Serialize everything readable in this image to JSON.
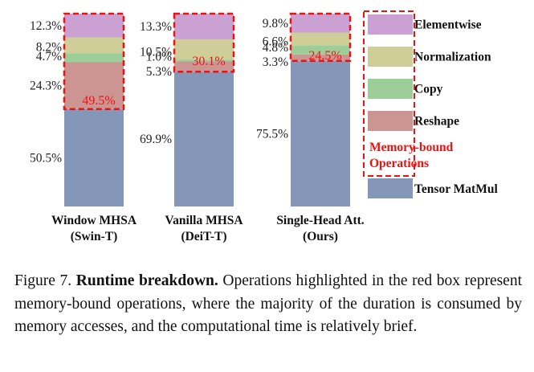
{
  "chart_data": {
    "type": "bar",
    "stacked": true,
    "categories": [
      {
        "line1": "Window MHSA",
        "line2": "(Swin-T)"
      },
      {
        "line1": "Vanilla MHSA",
        "line2": "(DeiT-T)"
      },
      {
        "line1": "Single-Head Att.",
        "line2": "(Ours)"
      }
    ],
    "series": [
      {
        "name": "Tensor MatMul",
        "values": [
          50.5,
          69.9,
          75.5
        ],
        "color": "#8497b8"
      },
      {
        "name": "Reshape",
        "values": [
          24.3,
          5.3,
          3.3
        ],
        "color": "#cd9592"
      },
      {
        "name": "Copy",
        "values": [
          4.7,
          1.0,
          4.8
        ],
        "color": "#9dce99"
      },
      {
        "name": "Normalization",
        "values": [
          8.2,
          10.5,
          6.6
        ],
        "color": "#cfcd98"
      },
      {
        "name": "Elementwise",
        "values": [
          12.3,
          13.3,
          9.8
        ],
        "color": "#cba0d2"
      }
    ],
    "value_labels": [
      [
        "50.5%",
        "24.3%",
        "4.7%",
        "8.2%",
        "12.3%"
      ],
      [
        "69.9%",
        "5.3%",
        "1.0%",
        "10.5%",
        "13.3%"
      ],
      [
        "75.5%",
        "3.3%",
        "4.8%",
        "6.6%",
        "9.8%"
      ]
    ],
    "memory_bound_totals": [
      "49.5%",
      "30.1%",
      "24.5%"
    ],
    "legend": {
      "items": [
        "Elementwise",
        "Normalization",
        "Copy",
        "Reshape"
      ],
      "memory_bound_title_line1": "Memory-bound",
      "memory_bound_title_line2": "Operations",
      "matmul_item": "Tensor MatMul",
      "position": "right"
    },
    "ylim": [
      0,
      100
    ],
    "highlight_color": "#ee1111"
  },
  "caption": {
    "label": "Figure 7.",
    "title": "Runtime breakdown.",
    "text": "Operations highlighted in the red box represent memory-bound operations, where the majority of the duration is consumed by memory accesses, and the computational time is relatively brief."
  }
}
